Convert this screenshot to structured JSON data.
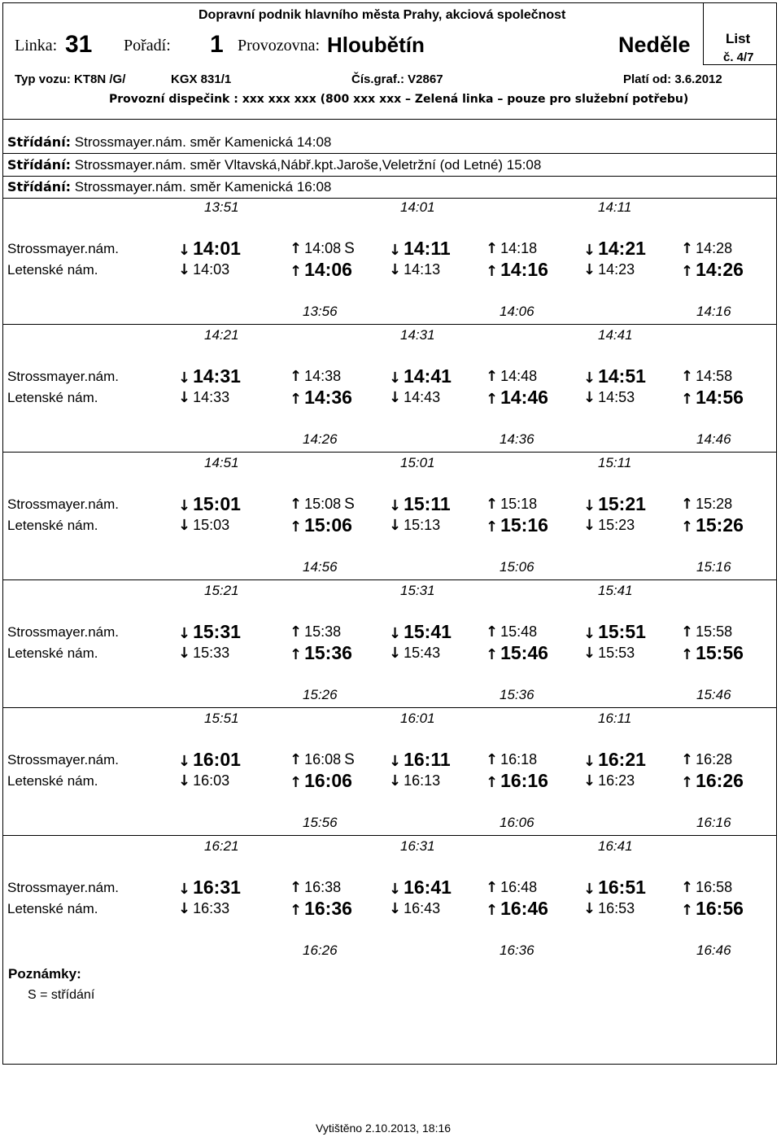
{
  "header": {
    "company": "Dopravní podnik hlavního města Prahy, akciová společnost",
    "linka_label": "Linka:",
    "linka_value": "31",
    "poradi_label": "Pořadí:",
    "poradi_value": "1",
    "provozovna_label": "Provozovna:",
    "provozovna_value": "Hloubětín",
    "day": "Neděle",
    "list_label": "List",
    "list_number": "č. 4/7",
    "typ_vozu": "Typ vozu: KT8N /G/",
    "kgx": "KGX 831/1",
    "cis_graf": "Čís.graf.: V2867",
    "plati_od": "Platí od: 3.6.2012",
    "dispatch": "Provozní dispečink : xxx xxx xxx (800 xxx xxx – Zelená linka – pouze pro služební potřebu)"
  },
  "strida": [
    {
      "label": "Střídání:",
      "text": " Strossmayer.nám. směr Kamenická 14:08"
    },
    {
      "label": "Střídání:",
      "text": " Strossmayer.nám. směr Vltavská,Nábř.kpt.Jaroše,Veletržní (od Letné) 15:08"
    },
    {
      "label": "Střídání:",
      "text": " Strossmayer.nám. směr Kamenická 16:08"
    }
  ],
  "stops": [
    "Strossmayer.nám.",
    "Letenské nám."
  ],
  "blocks": [
    {
      "above": [
        "13:51",
        "14:01",
        "14:11"
      ],
      "row1": [
        "14:01",
        "14:08",
        "14:11",
        "14:18",
        "14:21",
        "14:28"
      ],
      "row2": [
        "14:03",
        "14:06",
        "14:13",
        "14:16",
        "14:23",
        "14:26"
      ],
      "s": "S",
      "below": [
        "13:56",
        "14:06",
        "14:16"
      ]
    },
    {
      "above": [
        "14:21",
        "14:31",
        "14:41"
      ],
      "row1": [
        "14:31",
        "14:38",
        "14:41",
        "14:48",
        "14:51",
        "14:58"
      ],
      "row2": [
        "14:33",
        "14:36",
        "14:43",
        "14:46",
        "14:53",
        "14:56"
      ],
      "s": "",
      "below": [
        "14:26",
        "14:36",
        "14:46"
      ]
    },
    {
      "above": [
        "14:51",
        "15:01",
        "15:11"
      ],
      "row1": [
        "15:01",
        "15:08",
        "15:11",
        "15:18",
        "15:21",
        "15:28"
      ],
      "row2": [
        "15:03",
        "15:06",
        "15:13",
        "15:16",
        "15:23",
        "15:26"
      ],
      "s": "S",
      "below": [
        "14:56",
        "15:06",
        "15:16"
      ]
    },
    {
      "above": [
        "15:21",
        "15:31",
        "15:41"
      ],
      "row1": [
        "15:31",
        "15:38",
        "15:41",
        "15:48",
        "15:51",
        "15:58"
      ],
      "row2": [
        "15:33",
        "15:36",
        "15:43",
        "15:46",
        "15:53",
        "15:56"
      ],
      "s": "",
      "below": [
        "15:26",
        "15:36",
        "15:46"
      ]
    },
    {
      "above": [
        "15:51",
        "16:01",
        "16:11"
      ],
      "row1": [
        "16:01",
        "16:08",
        "16:11",
        "16:18",
        "16:21",
        "16:28"
      ],
      "row2": [
        "16:03",
        "16:06",
        "16:13",
        "16:16",
        "16:23",
        "16:26"
      ],
      "s": "S",
      "below": [
        "15:56",
        "16:06",
        "16:16"
      ]
    },
    {
      "above": [
        "16:21",
        "16:31",
        "16:41"
      ],
      "row1": [
        "16:31",
        "16:38",
        "16:41",
        "16:48",
        "16:51",
        "16:58"
      ],
      "row2": [
        "16:33",
        "16:36",
        "16:43",
        "16:46",
        "16:53",
        "16:56"
      ],
      "s": "",
      "below": [
        "16:26",
        "16:36",
        "16:46"
      ]
    }
  ],
  "arrows": {
    "down": "↓",
    "up": "↑"
  },
  "notes": {
    "title": "Poznámky:",
    "s_key": "S",
    "s_text": " = střídání"
  },
  "printed": "Vytištěno 2.10.2013, 18:16"
}
